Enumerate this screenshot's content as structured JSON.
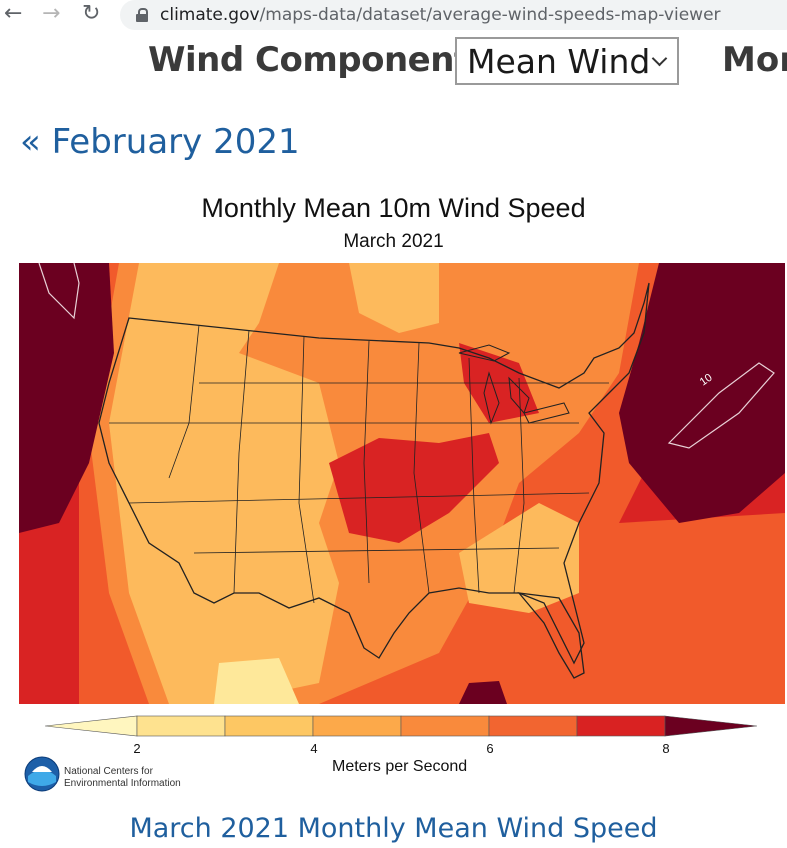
{
  "browser": {
    "back_icon": "arrow-left-icon",
    "forward_icon": "arrow-right-icon",
    "reload_icon": "reload-icon",
    "url_host": "climate.gov",
    "url_path": "/maps-data/dataset/average-wind-speeds-map-viewer"
  },
  "controls": {
    "wind_component_label": "Wind Component:",
    "wind_component_value": "Mean Wind",
    "month_label_partial": "Mor"
  },
  "navigation": {
    "previous_link": "« February 2021"
  },
  "map": {
    "title": "Monthly Mean 10m Wind Speed",
    "subtitle": "March 2021",
    "contour_label": "10",
    "legend": {
      "units": "Meters per Second",
      "ticks": [
        "2",
        "4",
        "6",
        "8"
      ],
      "colors": [
        "#fff6bf",
        "#fee28f",
        "#fdc763",
        "#fca94a",
        "#f98a3c",
        "#f26530",
        "#d92222",
        "#6b0020"
      ]
    },
    "colors": {
      "light_orange": "#fdba5c",
      "mid_orange": "#f98a3c",
      "orange_red": "#f15a2b",
      "red": "#d92323",
      "dark_red": "#6b0020",
      "pale_yellow": "#fee89a"
    }
  },
  "logo": {
    "icon": "noaa-logo-icon",
    "text_line1": "National Centers for",
    "text_line2": "Environmental Information"
  },
  "caption": "March 2021 Monthly Mean Wind Speed"
}
